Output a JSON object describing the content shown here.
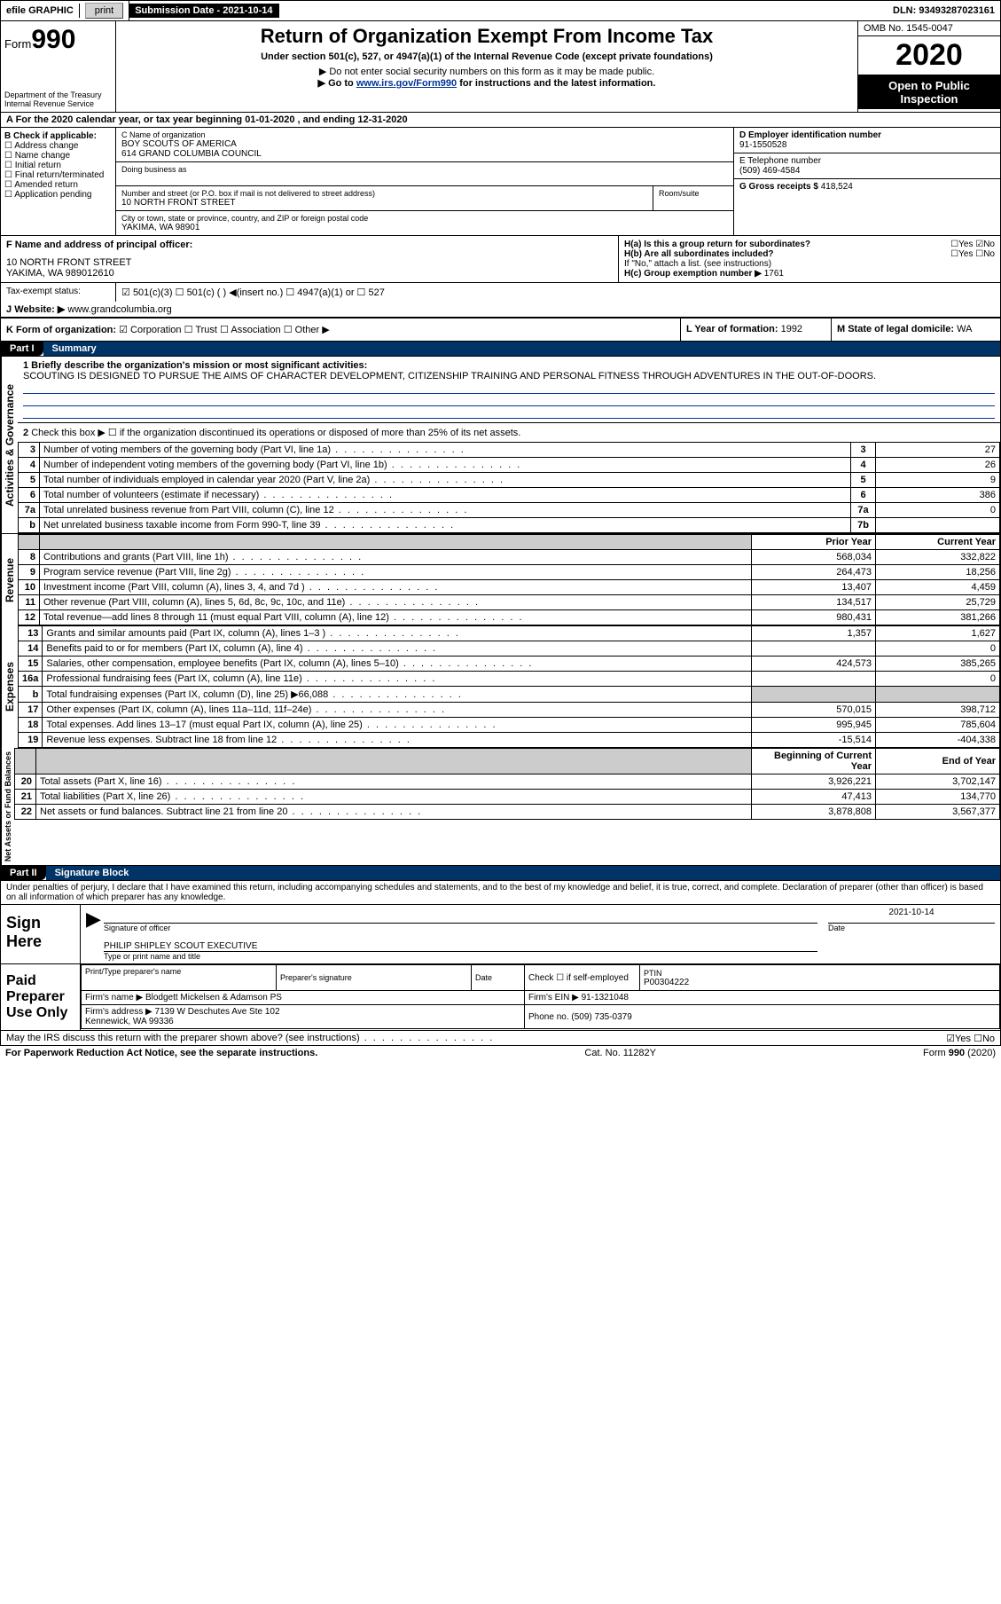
{
  "topbar": {
    "efile_label": "efile GRAPHIC",
    "print_btn": "print",
    "submission_label": "Submission Date - 2021-10-14",
    "dln": "DLN: 93493287023161"
  },
  "header": {
    "form_word": "Form",
    "form_num": "990",
    "dept": "Department of the Treasury",
    "irs": "Internal Revenue Service",
    "title": "Return of Organization Exempt From Income Tax",
    "subtitle": "Under section 501(c), 527, or 4947(a)(1) of the Internal Revenue Code (except private foundations)",
    "note1": "▶ Do not enter social security numbers on this form as it may be made public.",
    "note2_pre": "▶ Go to ",
    "note2_link": "www.irs.gov/Form990",
    "note2_post": " for instructions and the latest information.",
    "omb": "OMB No. 1545-0047",
    "year": "2020",
    "open": "Open to Public Inspection"
  },
  "row_a": "A For the 2020 calendar year, or tax year beginning 01-01-2020    , and ending 12-31-2020",
  "box_b": {
    "label": "B Check if applicable:",
    "opts": [
      "Address change",
      "Name change",
      "Initial return",
      "Final return/terminated",
      "Amended return",
      "Application pending"
    ]
  },
  "box_c": {
    "name_label": "C Name of organization",
    "name1": "BOY SCOUTS OF AMERICA",
    "name2": "614 GRAND COLUMBIA COUNCIL",
    "dba_label": "Doing business as",
    "street_label": "Number and street (or P.O. box if mail is not delivered to street address)",
    "room_label": "Room/suite",
    "street": "10 NORTH FRONT STREET",
    "city_label": "City or town, state or province, country, and ZIP or foreign postal code",
    "city": "YAKIMA, WA  98901"
  },
  "box_d": {
    "label": "D Employer identification number",
    "value": "91-1550528"
  },
  "box_e": {
    "label": "E Telephone number",
    "value": "(509) 469-4584"
  },
  "box_g": {
    "label": "G Gross receipts $",
    "value": "418,524"
  },
  "box_f": {
    "label": "F  Name and address of principal officer:",
    "line1": "10 NORTH FRONT STREET",
    "line2": "YAKIMA, WA  989012610"
  },
  "box_h": {
    "ha": "H(a)  Is this a group return for subordinates?",
    "hb": "H(b)  Are all subordinates included?",
    "hb_note": "If \"No,\" attach a list. (see instructions)",
    "hc": "H(c)  Group exemption number ▶",
    "hc_val": "1761",
    "yes": "Yes",
    "no": "No"
  },
  "tax_status": {
    "label": "Tax-exempt status:",
    "opt1": "501(c)(3)",
    "opt2": "501(c) (  ) ◀(insert no.)",
    "opt3": "4947(a)(1) or",
    "opt4": "527"
  },
  "box_j": {
    "label": "J",
    "website": "Website: ▶",
    "value": "www.grandcolumbia.org"
  },
  "box_k": {
    "label": "K Form of organization:",
    "opts": [
      "Corporation",
      "Trust",
      "Association",
      "Other ▶"
    ]
  },
  "box_l": {
    "label": "L Year of formation:",
    "value": "1992"
  },
  "box_m": {
    "label": "M State of legal domicile:",
    "value": "WA"
  },
  "part1": {
    "hdr": "Part I",
    "title": "Summary",
    "q1": "1  Briefly describe the organization's mission or most significant activities:",
    "q1_text": "SCOUTING IS DESIGNED TO PURSUE THE AIMS OF CHARACTER DEVELOPMENT, CITIZENSHIP TRAINING AND PERSONAL FITNESS THROUGH ADVENTURES IN THE OUT-OF-DOORS.",
    "q2": "Check this box ▶ ☐ if the organization discontinued its operations or disposed of more than 25% of its net assets."
  },
  "sections": {
    "gov": "Activities & Governance",
    "rev": "Revenue",
    "exp": "Expenses",
    "net": "Net Assets or Fund Balances"
  },
  "cols": {
    "prior": "Prior Year",
    "current": "Current Year",
    "beg": "Beginning of Current Year",
    "end": "End of Year"
  },
  "gov_lines": [
    {
      "n": "3",
      "t": "Number of voting members of the governing body (Part VI, line 1a)",
      "b": "3",
      "v": "27"
    },
    {
      "n": "4",
      "t": "Number of independent voting members of the governing body (Part VI, line 1b)",
      "b": "4",
      "v": "26"
    },
    {
      "n": "5",
      "t": "Total number of individuals employed in calendar year 2020 (Part V, line 2a)",
      "b": "5",
      "v": "9"
    },
    {
      "n": "6",
      "t": "Total number of volunteers (estimate if necessary)",
      "b": "6",
      "v": "386"
    },
    {
      "n": "7a",
      "t": "Total unrelated business revenue from Part VIII, column (C), line 12",
      "b": "7a",
      "v": "0"
    },
    {
      "n": "b",
      "t": "Net unrelated business taxable income from Form 990-T, line 39",
      "b": "7b",
      "v": ""
    }
  ],
  "rev_lines": [
    {
      "n": "8",
      "t": "Contributions and grants (Part VIII, line 1h)",
      "p": "568,034",
      "c": "332,822"
    },
    {
      "n": "9",
      "t": "Program service revenue (Part VIII, line 2g)",
      "p": "264,473",
      "c": "18,256"
    },
    {
      "n": "10",
      "t": "Investment income (Part VIII, column (A), lines 3, 4, and 7d )",
      "p": "13,407",
      "c": "4,459"
    },
    {
      "n": "11",
      "t": "Other revenue (Part VIII, column (A), lines 5, 6d, 8c, 9c, 10c, and 11e)",
      "p": "134,517",
      "c": "25,729"
    },
    {
      "n": "12",
      "t": "Total revenue—add lines 8 through 11 (must equal Part VIII, column (A), line 12)",
      "p": "980,431",
      "c": "381,266"
    }
  ],
  "exp_lines": [
    {
      "n": "13",
      "t": "Grants and similar amounts paid (Part IX, column (A), lines 1–3 )",
      "p": "1,357",
      "c": "1,627"
    },
    {
      "n": "14",
      "t": "Benefits paid to or for members (Part IX, column (A), line 4)",
      "p": "",
      "c": "0"
    },
    {
      "n": "15",
      "t": "Salaries, other compensation, employee benefits (Part IX, column (A), lines 5–10)",
      "p": "424,573",
      "c": "385,265"
    },
    {
      "n": "16a",
      "t": "Professional fundraising fees (Part IX, column (A), line 11e)",
      "p": "",
      "c": "0"
    },
    {
      "n": "b",
      "t": "Total fundraising expenses (Part IX, column (D), line 25) ▶66,088",
      "p": "SHADE",
      "c": "SHADE"
    },
    {
      "n": "17",
      "t": "Other expenses (Part IX, column (A), lines 11a–11d, 11f–24e)",
      "p": "570,015",
      "c": "398,712"
    },
    {
      "n": "18",
      "t": "Total expenses. Add lines 13–17 (must equal Part IX, column (A), line 25)",
      "p": "995,945",
      "c": "785,604"
    },
    {
      "n": "19",
      "t": "Revenue less expenses. Subtract line 18 from line 12",
      "p": "-15,514",
      "c": "-404,338"
    }
  ],
  "net_lines": [
    {
      "n": "20",
      "t": "Total assets (Part X, line 16)",
      "p": "3,926,221",
      "c": "3,702,147"
    },
    {
      "n": "21",
      "t": "Total liabilities (Part X, line 26)",
      "p": "47,413",
      "c": "134,770"
    },
    {
      "n": "22",
      "t": "Net assets or fund balances. Subtract line 21 from line 20",
      "p": "3,878,808",
      "c": "3,567,377"
    }
  ],
  "part2": {
    "hdr": "Part II",
    "title": "Signature Block",
    "decl": "Under penalties of perjury, I declare that I have examined this return, including accompanying schedules and statements, and to the best of my knowledge and belief, it is true, correct, and complete. Declaration of preparer (other than officer) is based on all information of which preparer has any knowledge."
  },
  "sign": {
    "label": "Sign Here",
    "sig_officer": "Signature of officer",
    "date": "2021-10-14",
    "date_label": "Date",
    "name": "PHILIP SHIPLEY  SCOUT EXECUTIVE",
    "name_label": "Type or print name and title"
  },
  "preparer": {
    "label": "Paid Preparer Use Only",
    "col1": "Print/Type preparer's name",
    "col2": "Preparer's signature",
    "col3": "Date",
    "check": "Check ☐ if self-employed",
    "ptin_label": "PTIN",
    "ptin": "P00304222",
    "firm_name_label": "Firm's name    ▶",
    "firm_name": "Blodgett Mickelsen & Adamson PS",
    "firm_ein_label": "Firm's EIN ▶",
    "firm_ein": "91-1321048",
    "firm_addr_label": "Firm's address ▶",
    "firm_addr1": "7139 W Deschutes Ave Ste 102",
    "firm_addr2": "Kennewick, WA  99336",
    "phone_label": "Phone no.",
    "phone": "(509) 735-0379",
    "discuss": "May the IRS discuss this return with the preparer shown above? (see instructions)"
  },
  "footer": {
    "left": "For Paperwork Reduction Act Notice, see the separate instructions.",
    "mid": "Cat. No. 11282Y",
    "right": "Form 990 (2020)"
  },
  "glyph": {
    "checked": "☑",
    "unchecked": "☐",
    "arrow": "▶"
  }
}
